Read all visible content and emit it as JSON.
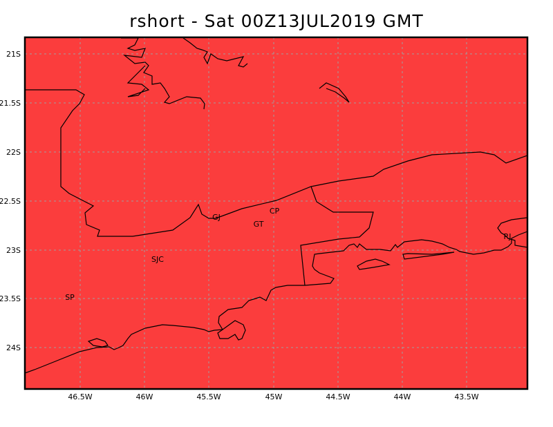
{
  "title": "rshort - Sat 00Z13JUL2019 GMT",
  "fill_color": "#fb3d3d",
  "grid_color": "#a0a0a0",
  "lat_labels": [
    "21S",
    "21.5S",
    "22S",
    "22.5S",
    "23S",
    "23.5S",
    "24S"
  ],
  "lon_labels": [
    "46.5W",
    "46W",
    "45.5W",
    "45W",
    "44.5W",
    "44W",
    "43.5W"
  ],
  "cities": [
    {
      "label": "GJ"
    },
    {
      "label": "CP"
    },
    {
      "label": "GT"
    },
    {
      "label": "SJC"
    },
    {
      "label": "SP"
    },
    {
      "label": "RJ"
    }
  ]
}
